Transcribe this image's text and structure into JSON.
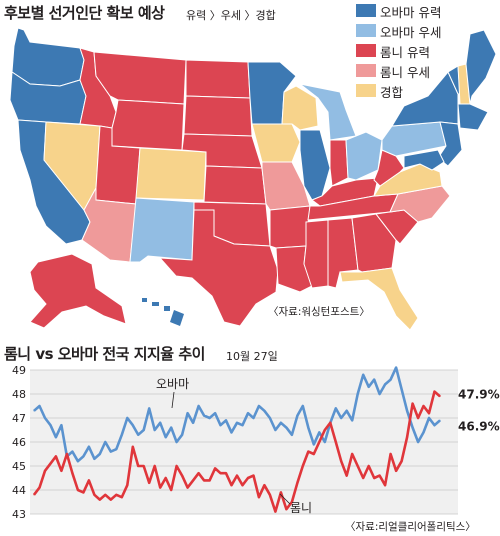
{
  "map": {
    "title": "후보별 선거인단 확보 예상",
    "subtitle": "유력 〉우세 〉경합",
    "source": "〈자료:워싱턴포스트〉",
    "legend": [
      {
        "label": "오바마 유력",
        "color": "#3d79b3"
      },
      {
        "label": "오바마 우세",
        "color": "#92bde3"
      },
      {
        "label": "롬니 유력",
        "color": "#dc4552"
      },
      {
        "label": "롬니 우세",
        "color": "#ef9a9a"
      },
      {
        "label": "경합",
        "color": "#f7d38b"
      }
    ]
  },
  "chart": {
    "title": "롬니 vs 오바마 전국 지지율 추이",
    "date": "10월 27일",
    "source": "〈자료:리얼클리어폴리틱스〉"
  },
  "chart_data": {
    "type": "line",
    "title": "롬니 vs 오바마 전국 지지율 추이",
    "ylim": [
      43,
      49
    ],
    "yticks": [
      43,
      44,
      45,
      46,
      47,
      48,
      49
    ],
    "grid": true,
    "series": [
      {
        "name": "오바마",
        "color": "#5b93cf",
        "end_label": "46.9%",
        "values": [
          47.3,
          47.5,
          47.0,
          46.7,
          46.2,
          46.7,
          45.4,
          45.6,
          45.2,
          45.4,
          45.8,
          45.3,
          45.5,
          46.0,
          45.6,
          45.7,
          46.3,
          47.0,
          46.7,
          46.3,
          46.5,
          47.4,
          46.5,
          46.8,
          46.2,
          46.6,
          46.0,
          46.3,
          47.2,
          46.8,
          47.5,
          47.1,
          47.0,
          47.2,
          46.7,
          46.9,
          46.4,
          46.8,
          46.7,
          47.2,
          47.0,
          47.5,
          47.3,
          47.0,
          46.5,
          46.8,
          46.6,
          46.3,
          47.1,
          47.5,
          46.6,
          45.9,
          46.4,
          46.0,
          46.8,
          47.4,
          47.0,
          47.3,
          46.9,
          48.0,
          48.8,
          48.3,
          48.6,
          48.0,
          48.4,
          48.6,
          49.1,
          48.2,
          47.3,
          46.6,
          46.0,
          46.4,
          47.0,
          46.7,
          46.9
        ]
      },
      {
        "name": "롬니",
        "color": "#e0363b",
        "end_label": "47.9%",
        "values": [
          43.8,
          44.1,
          44.8,
          45.1,
          45.4,
          44.8,
          45.5,
          44.7,
          44.0,
          43.9,
          44.4,
          43.8,
          43.6,
          43.8,
          43.6,
          43.8,
          43.7,
          44.2,
          45.8,
          45.0,
          45.0,
          44.3,
          45.0,
          44.1,
          44.5,
          44.0,
          45.0,
          44.6,
          44.1,
          44.4,
          44.7,
          44.4,
          44.4,
          44.9,
          44.7,
          44.7,
          44.2,
          44.6,
          44.2,
          44.5,
          44.6,
          43.7,
          44.2,
          43.8,
          43.1,
          43.9,
          43.2,
          43.5,
          44.3,
          45.0,
          45.6,
          45.5,
          46.0,
          46.5,
          46.8,
          46.0,
          45.2,
          44.6,
          45.5,
          45.0,
          44.5,
          45.0,
          44.5,
          44.6,
          44.2,
          45.5,
          44.8,
          45.2,
          46.2,
          47.6,
          47.0,
          47.5,
          47.2,
          48.1,
          47.9
        ]
      }
    ],
    "annotations": [
      "오바마",
      "롬니"
    ]
  }
}
